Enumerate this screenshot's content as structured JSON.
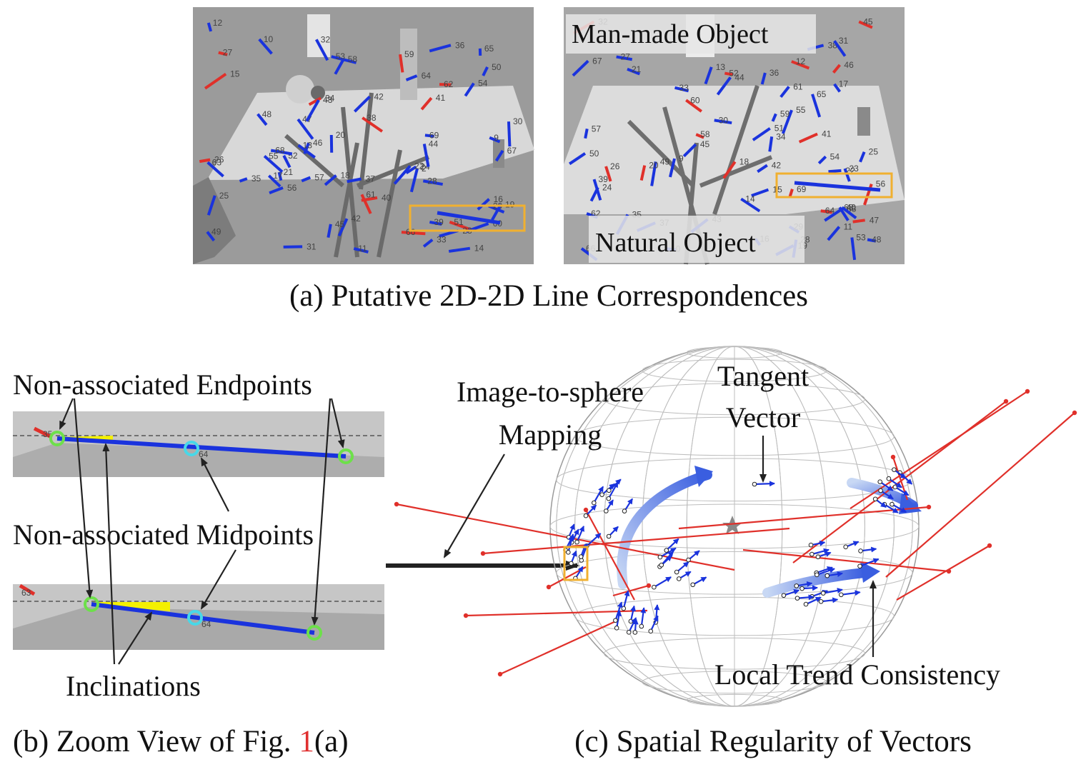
{
  "panel_a": {
    "caption": "(a) Putative 2D-2D Line Correspondences",
    "right_labels": {
      "top": "Man-made Object",
      "bottom": "Natural Object"
    },
    "left_ids": [
      "49",
      "42",
      "24",
      "28",
      "29",
      "2",
      "34",
      "47",
      "39",
      "38",
      "43",
      "48",
      "46",
      "42",
      "37",
      "52",
      "51",
      "53",
      "59",
      "60",
      "62",
      "63",
      "64",
      "65",
      "66",
      "67",
      "68",
      "69",
      "35",
      "14",
      "56",
      "45",
      "41",
      "31",
      "50",
      "40",
      "58",
      "61",
      "13",
      "21",
      "23",
      "25",
      "27",
      "26",
      "17",
      "18",
      "15",
      "9",
      "10",
      "11",
      "12",
      "16",
      "19",
      "20",
      "22",
      "30",
      "32",
      "33",
      "36",
      "44",
      "54",
      "55",
      "57"
    ],
    "right_ids": [
      "45",
      "29",
      "12",
      "54",
      "28",
      "69",
      "36",
      "42",
      "39",
      "38",
      "43",
      "46",
      "48",
      "47",
      "57",
      "52",
      "51",
      "55",
      "56",
      "24",
      "58",
      "60",
      "32",
      "65",
      "66",
      "67",
      "68",
      "37",
      "63",
      "61",
      "35",
      "64",
      "50",
      "40",
      "45",
      "44",
      "49",
      "9",
      "21",
      "23",
      "27",
      "26",
      "17",
      "13",
      "41",
      "15",
      "10",
      "11",
      "14",
      "16",
      "18",
      "19",
      "20",
      "22",
      "25",
      "30",
      "31",
      "33",
      "34",
      "53",
      "59",
      "62"
    ]
  },
  "panel_b": {
    "caption_prefix": "(b) Zoom View of Fig. ",
    "caption_ref": "1",
    "caption_suffix": "(a)",
    "ref_color": "#e03030",
    "label_endpoints": "Non-associated Endpoints",
    "label_midpoints": "Non-associated Midpoints",
    "label_inclinations": "Inclinations",
    "zoom_top_ids": [
      "35",
      "64"
    ],
    "zoom_bottom_ids": [
      "63",
      "64"
    ]
  },
  "panel_c": {
    "caption": "(c) Spatial Regularity of Vectors",
    "label_mapping_1": "Image-to-sphere",
    "label_mapping_2": "Mapping",
    "label_tangent_1": "Tangent",
    "label_tangent_2": "Vector",
    "label_consistency": "Local Trend Consistency"
  },
  "colors": {
    "line_blue": "#1a33dd",
    "line_red": "#e0302a",
    "highlight_orange": "#f0b030",
    "endpoint_green": "#6de04a",
    "midpoint_cyan": "#48d8e8",
    "inclination_yellow": "#f4f000",
    "photo_gray": "#9e9e9e"
  }
}
